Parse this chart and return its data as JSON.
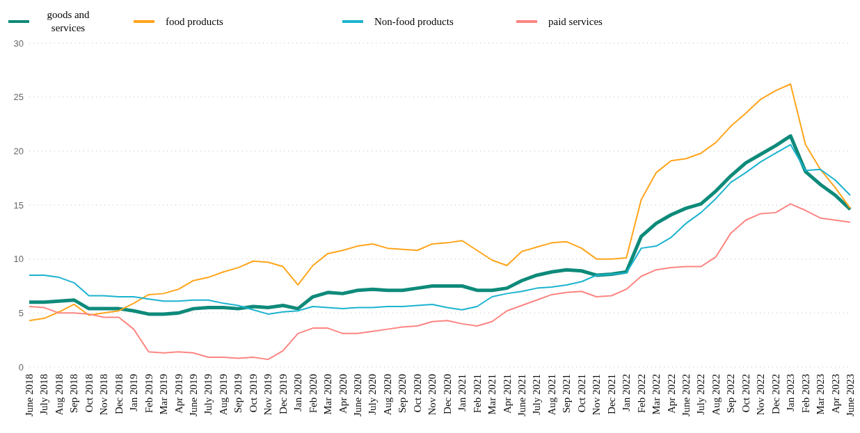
{
  "chart_data": {
    "type": "line",
    "categories": [
      "June 2018",
      "July 2018",
      "Aug 2018",
      "Sep 2018",
      "Oct 2018",
      "Nov 2018",
      "Dec 2018",
      "Jan 2019",
      "Feb 2019",
      "Mar 2019",
      "Apr 2019",
      "June 2019",
      "July 2019",
      "Aug 2019",
      "Sep 2019",
      "Oct 2019",
      "Nov 2019",
      "Dec 2019",
      "Jan 2020",
      "Feb 2020",
      "Mar 2020",
      "Apr 2020",
      "June 2020",
      "July 2020",
      "Aug 2020",
      "Sep 2020",
      "Oct 2020",
      "Nov 2020",
      "Dec 2020",
      "Jan 2021",
      "Feb 2021",
      "Mar 2021",
      "Apr 2021",
      "June 2021",
      "July 2021",
      "Aug 2021",
      "Sep 2021",
      "Oct 2021",
      "Nov 2021",
      "Dec 2021",
      "Jan 2022",
      "Feb 2022",
      "Mar 2022",
      "Apr 2022",
      "June 2022",
      "July 2022",
      "Aug 2022",
      "Sep 2022",
      "Oct 2022",
      "Nov 2022",
      "Dec 2022",
      "Jan 2023",
      "Feb 2023",
      "Mar 2023",
      "Apr 2023",
      "June 2023"
    ],
    "series": [
      {
        "name": "goods and services",
        "color": "#0e8a7a",
        "values": [
          6.0,
          6.0,
          6.1,
          6.2,
          5.4,
          5.4,
          5.4,
          5.2,
          4.9,
          4.9,
          5.0,
          5.4,
          5.5,
          5.5,
          5.4,
          5.6,
          5.5,
          5.7,
          5.4,
          6.5,
          6.9,
          6.8,
          7.1,
          7.2,
          7.1,
          7.1,
          7.3,
          7.5,
          7.5,
          7.5,
          7.1,
          7.1,
          7.3,
          8.0,
          8.5,
          8.8,
          9.0,
          8.9,
          8.5,
          8.6,
          8.8,
          12.1,
          13.3,
          14.1,
          14.7,
          15.1,
          16.3,
          17.7,
          18.9,
          19.7,
          20.5,
          21.4,
          18.1,
          16.9,
          15.9,
          14.6
        ]
      },
      {
        "name": "food products",
        "color": "#ffa41b",
        "values": [
          4.3,
          4.5,
          5.1,
          5.8,
          4.8,
          5.0,
          5.2,
          5.9,
          6.7,
          6.8,
          7.2,
          8.0,
          8.3,
          8.8,
          9.2,
          9.8,
          9.7,
          9.3,
          7.6,
          9.4,
          10.5,
          10.8,
          11.2,
          11.4,
          11.0,
          10.9,
          10.8,
          11.4,
          11.5,
          11.7,
          10.8,
          9.9,
          9.4,
          10.7,
          11.1,
          11.5,
          11.6,
          11.0,
          10.0,
          10.0,
          10.1,
          15.5,
          18.0,
          19.1,
          19.3,
          19.8,
          20.8,
          22.3,
          23.5,
          24.8,
          25.6,
          26.2,
          20.6,
          18.3,
          16.6,
          14.7
        ]
      },
      {
        "name": "Non-food products",
        "color": "#1ab3cf",
        "values": [
          8.5,
          8.5,
          8.3,
          7.8,
          6.6,
          6.6,
          6.5,
          6.5,
          6.3,
          6.1,
          6.1,
          6.2,
          6.2,
          5.9,
          5.7,
          5.3,
          4.9,
          5.1,
          5.2,
          5.6,
          5.5,
          5.4,
          5.5,
          5.5,
          5.6,
          5.6,
          5.7,
          5.8,
          5.5,
          5.3,
          5.6,
          6.5,
          6.8,
          7.0,
          7.3,
          7.4,
          7.6,
          7.9,
          8.5,
          8.6,
          8.7,
          11.0,
          11.2,
          12.0,
          13.3,
          14.3,
          15.6,
          17.1,
          18.0,
          19.0,
          19.8,
          20.6,
          18.2,
          18.3,
          17.3,
          15.9
        ]
      },
      {
        "name": "paid services",
        "color": "#fd8582",
        "values": [
          5.6,
          5.5,
          5.0,
          5.0,
          4.9,
          4.6,
          4.6,
          3.5,
          1.4,
          1.3,
          1.4,
          1.3,
          0.9,
          0.9,
          0.8,
          0.9,
          0.7,
          1.5,
          3.1,
          3.6,
          3.6,
          3.1,
          3.1,
          3.3,
          3.5,
          3.7,
          3.8,
          4.2,
          4.3,
          4.0,
          3.8,
          4.2,
          5.2,
          5.7,
          6.2,
          6.7,
          6.9,
          7.0,
          6.5,
          6.6,
          7.2,
          8.4,
          9.0,
          9.2,
          9.3,
          9.3,
          10.2,
          12.4,
          13.6,
          14.2,
          14.3,
          15.1,
          14.5,
          13.8,
          13.6,
          13.4
        ]
      }
    ],
    "ylim": [
      0,
      30
    ],
    "yticks": [
      0,
      5,
      10,
      15,
      20,
      25,
      30
    ],
    "grid": "y",
    "legend": "top left",
    "marker": "none",
    "line_style": "solid"
  }
}
